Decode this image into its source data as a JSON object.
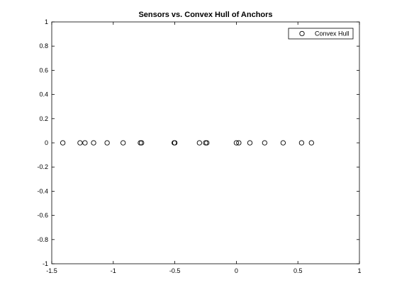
{
  "chart_data": {
    "type": "scatter",
    "title": "Sensors vs. Convex Hull of Anchors",
    "xlabel": "",
    "ylabel": "",
    "xlim": [
      -1.5,
      1
    ],
    "ylim": [
      -1,
      1
    ],
    "xticks": [
      -1.5,
      -1,
      -0.5,
      0,
      0.5,
      1
    ],
    "xtick_labels": [
      "-1.5",
      "-1",
      "-0.5",
      "0",
      "0.5",
      "1"
    ],
    "yticks": [
      -1,
      -0.8,
      -0.6,
      -0.4,
      -0.2,
      0,
      0.2,
      0.4,
      0.6,
      0.8,
      1
    ],
    "ytick_labels": [
      "-1",
      "-0.8",
      "-0.6",
      "-0.4",
      "-0.2",
      "0",
      "0.2",
      "0.4",
      "0.6",
      "0.8",
      "1"
    ],
    "grid": false,
    "legend_position": "top-right",
    "marker": "open-circle",
    "marker_color": "#000000",
    "series": [
      {
        "name": "Convex Hull",
        "x": [
          -1.41,
          -1.27,
          -1.23,
          -1.16,
          -1.05,
          -0.92,
          -0.78,
          -0.77,
          -0.505,
          -0.5,
          -0.3,
          -0.25,
          -0.24,
          0.0,
          0.02,
          0.11,
          0.23,
          0.38,
          0.53,
          0.61
        ],
        "y": [
          0,
          0,
          0,
          0,
          0,
          0,
          0,
          0,
          0,
          0,
          0,
          0,
          0,
          0,
          0,
          0,
          0,
          0,
          0,
          0
        ]
      }
    ]
  }
}
